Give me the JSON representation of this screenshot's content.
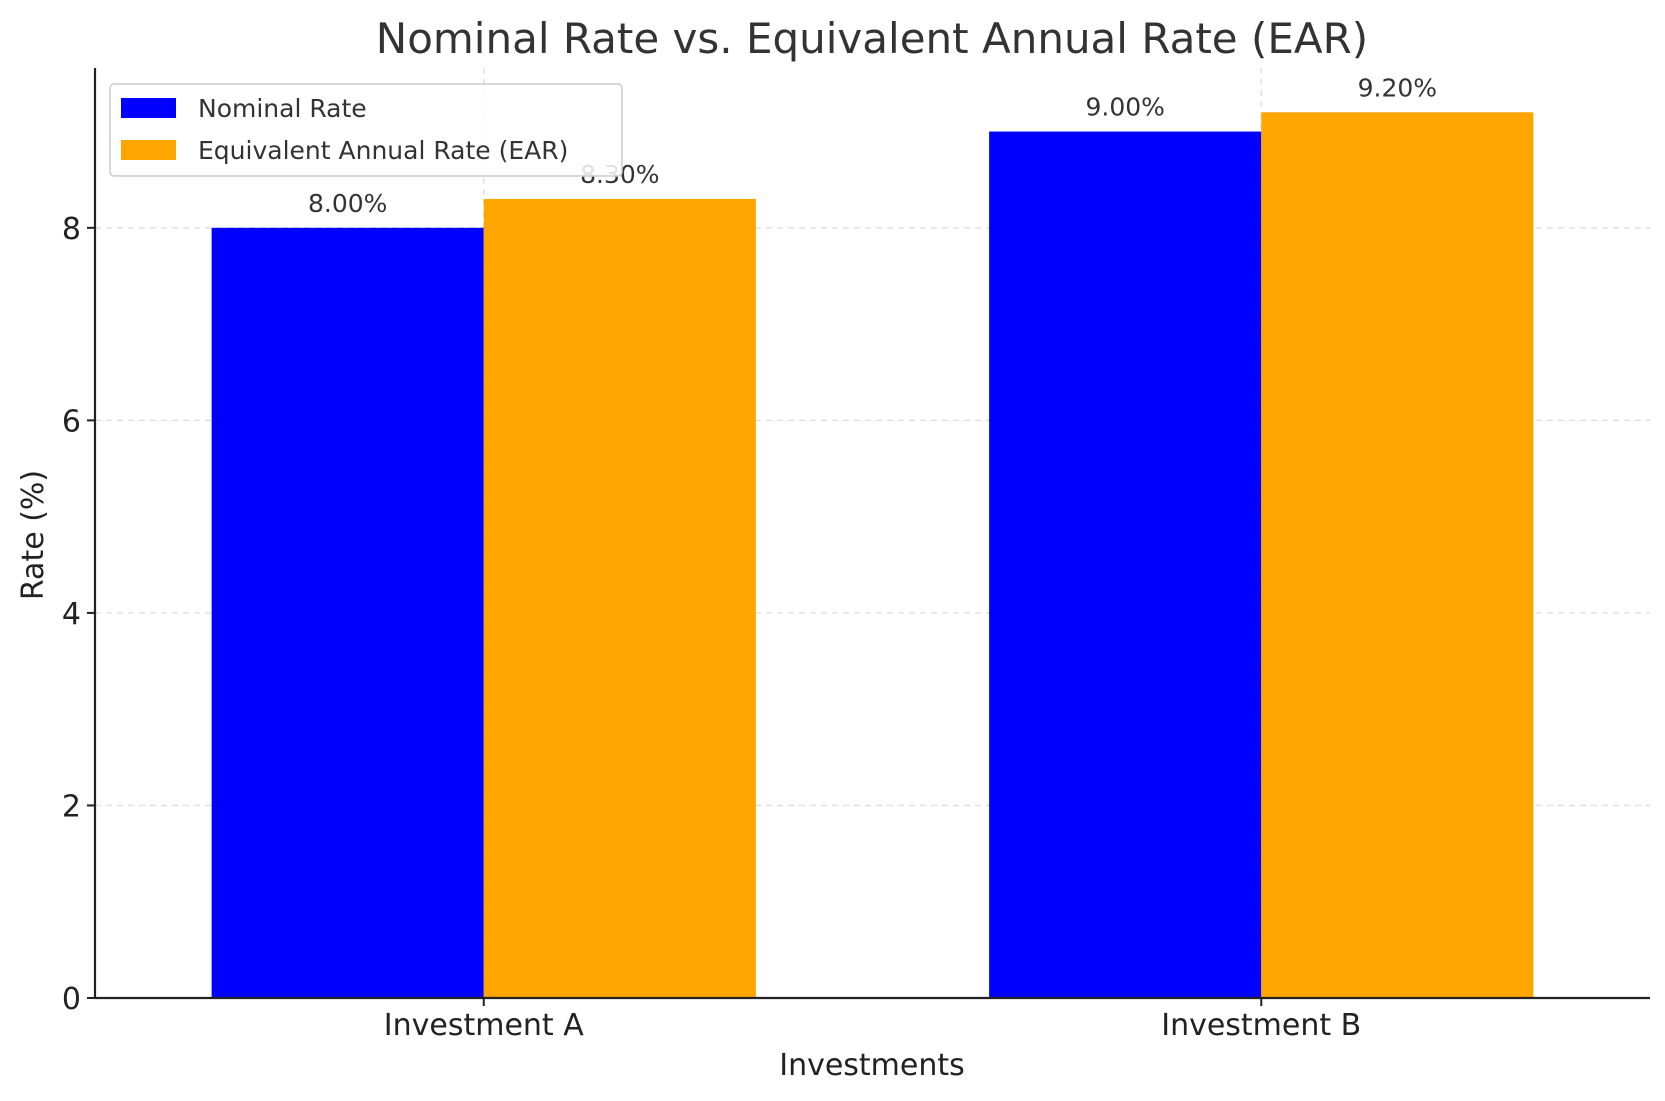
{
  "chart_data": {
    "type": "bar",
    "title": "Nominal Rate vs. Equivalent Annual Rate (EAR)",
    "xlabel": "Investments",
    "ylabel": "Rate (%)",
    "categories": [
      "Investment A",
      "Investment B"
    ],
    "series": [
      {
        "name": "Nominal Rate",
        "color": "#0000ff",
        "values": [
          8.0,
          9.0
        ],
        "labels": [
          "8.00%",
          "9.00%"
        ]
      },
      {
        "name": "Equivalent Annual Rate (EAR)",
        "color": "#ffa500",
        "values": [
          8.3,
          9.2
        ],
        "labels": [
          "8.30%",
          "9.20%"
        ]
      }
    ],
    "yticks": [
      0,
      2,
      4,
      6,
      8
    ],
    "ylim": [
      0,
      9.66
    ],
    "grid": true,
    "legend": "top-left"
  }
}
